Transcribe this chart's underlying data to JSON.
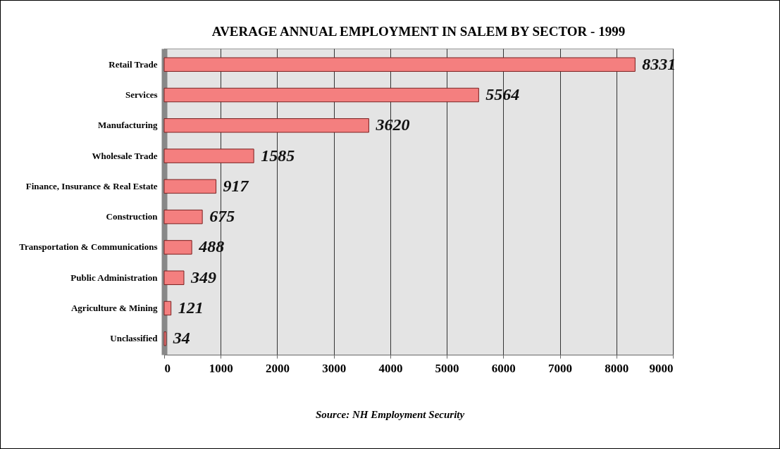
{
  "chart_data": {
    "type": "bar",
    "orientation": "horizontal",
    "title": "AVERAGE ANNUAL EMPLOYMENT IN SALEM BY SECTOR - 1999",
    "categories": [
      "Retail Trade",
      "Services",
      "Manufacturing",
      "Wholesale Trade",
      "Finance, Insurance & Real Estate",
      "Construction",
      "Transportation & Communications",
      "Public Administration",
      "Agriculture & Mining",
      "Unclassified"
    ],
    "values": [
      8331,
      5564,
      3620,
      1585,
      917,
      675,
      488,
      349,
      121,
      34
    ],
    "color": "#f47f7f",
    "xlim": [
      0,
      9000
    ],
    "xticks": [
      0,
      1000,
      2000,
      3000,
      4000,
      5000,
      6000,
      7000,
      8000,
      9000
    ],
    "grid": "x",
    "data_labels": true,
    "annotations": [
      "Source:  NH Employment Security"
    ]
  }
}
